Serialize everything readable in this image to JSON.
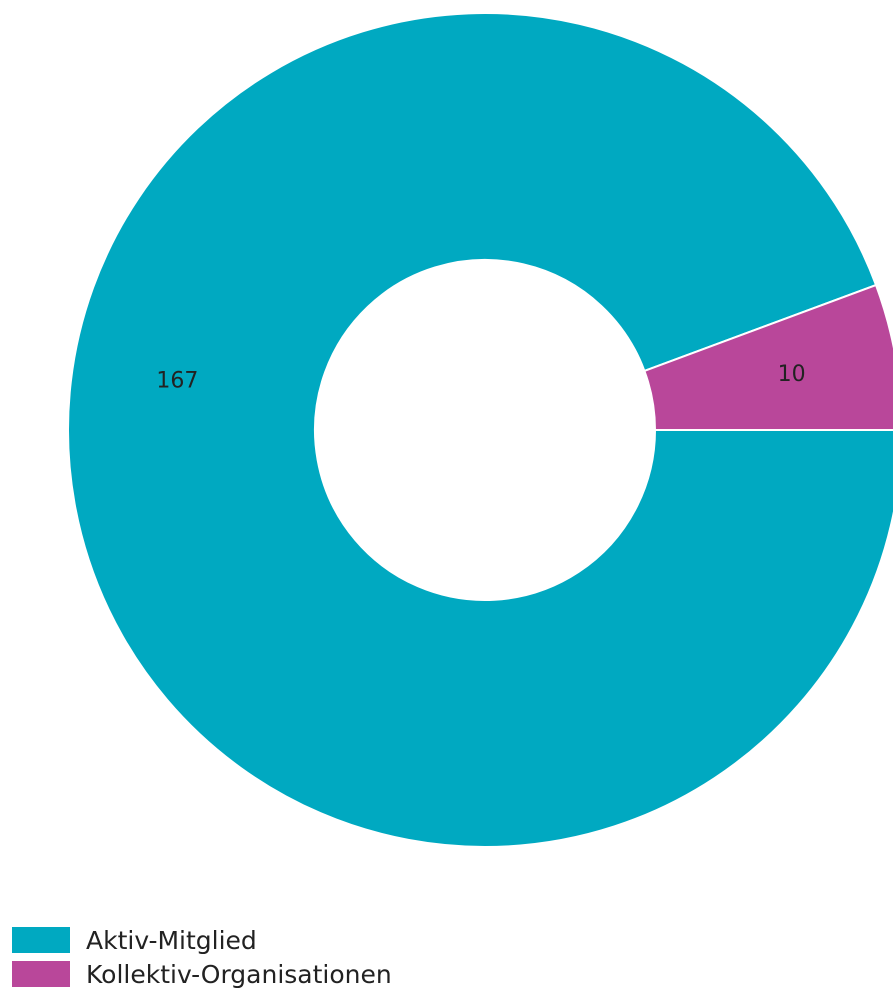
{
  "chart_data": {
    "type": "pie",
    "donut": true,
    "categories": [
      "Aktiv-Mitglied",
      "Kollektiv-Organisationen"
    ],
    "values": [
      167,
      10
    ],
    "colors": [
      "#00a9c1",
      "#b9479a"
    ],
    "data_labels": [
      "167",
      "10"
    ],
    "legend_position": "bottom-left"
  }
}
